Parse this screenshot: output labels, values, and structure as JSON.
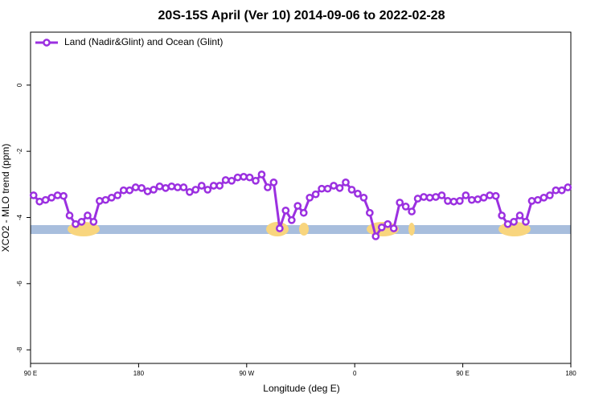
{
  "chart_data": {
    "type": "line",
    "title": "20S-15S April (Ver 10)   2014-09-06 to 2022-02-28",
    "x_label": "Longitude (deg E)",
    "y_label": "XCO2 - MLO trend (ppm)",
    "legend_position": "top-left",
    "x": [
      92.5,
      97.5,
      102.5,
      107.5,
      112.5,
      117.5,
      122.5,
      127.5,
      132.5,
      137.5,
      142.5,
      147.5,
      152.5,
      157.5,
      162.5,
      167.5,
      172.5,
      177.5,
      182.5,
      187.5,
      192.5,
      197.5,
      202.5,
      207.5,
      212.5,
      217.5,
      222.5,
      227.5,
      232.5,
      237.5,
      242.5,
      247.5,
      252.5,
      257.5,
      262.5,
      267.5,
      272.5,
      277.5,
      282.5,
      287.5,
      292.5,
      297.5,
      302.5,
      307.5,
      312.5,
      317.5,
      322.5,
      327.5,
      332.5,
      337.5,
      342.5,
      347.5,
      352.5,
      357.5,
      362.5,
      367.5,
      372.5,
      377.5,
      382.5,
      387.5,
      392.5,
      397.5,
      402.5,
      407.5,
      412.5,
      417.5,
      422.5,
      427.5,
      432.5,
      437.5,
      442.5,
      447.5,
      452.5,
      457.5,
      462.5,
      467.5,
      472.5,
      477.5,
      482.5,
      487.5,
      492.5,
      497.5,
      502.5,
      507.5,
      512.5,
      517.5,
      522.5,
      527.5,
      532.5,
      537.5
    ],
    "series": [
      {
        "name": "Land (Nadir&Glint) and Ocean (Glint)",
        "color": "#9b30e0",
        "values": [
          -3.33,
          -3.52,
          -3.47,
          -3.4,
          -3.33,
          -3.35,
          -3.94,
          -4.2,
          -4.13,
          -3.94,
          -4.13,
          -3.5,
          -3.47,
          -3.4,
          -3.33,
          -3.18,
          -3.18,
          -3.09,
          -3.11,
          -3.21,
          -3.16,
          -3.06,
          -3.11,
          -3.06,
          -3.09,
          -3.09,
          -3.23,
          -3.16,
          -3.04,
          -3.16,
          -3.04,
          -3.04,
          -2.87,
          -2.89,
          -2.79,
          -2.77,
          -2.79,
          -2.89,
          -2.7,
          -3.09,
          -2.94,
          -4.33,
          -3.79,
          -4.08,
          -3.65,
          -3.86,
          -3.4,
          -3.3,
          -3.13,
          -3.13,
          -3.04,
          -3.11,
          -2.94,
          -3.16,
          -3.28,
          -3.4,
          -3.86,
          -4.57,
          -4.3,
          -4.2,
          -4.33,
          -3.55,
          -3.67,
          -3.82,
          -3.43,
          -3.38,
          -3.4,
          -3.38,
          -3.33,
          -3.5,
          -3.52,
          -3.5,
          -3.33,
          -3.47,
          -3.45,
          -3.4,
          -3.33,
          -3.35,
          -3.94,
          -4.2,
          -4.13,
          -3.94,
          -4.13,
          -3.5,
          -3.47,
          -3.4,
          -3.33,
          -3.18,
          -3.18,
          -3.09
        ]
      }
    ],
    "xlim": [
      90,
      540
    ],
    "xticks": [
      {
        "value": 90,
        "label": "90 E"
      },
      180,
      {
        "value": 270,
        "label": "90 W"
      },
      {
        "value": 360,
        "label": "0"
      },
      {
        "value": 450,
        "label": "90 E"
      },
      {
        "value": 540,
        "label": "180"
      }
    ],
    "ylim": [
      -8.41,
      1.6
    ],
    "yticks": [
      0,
      -2,
      -4,
      -6,
      -8
    ]
  }
}
